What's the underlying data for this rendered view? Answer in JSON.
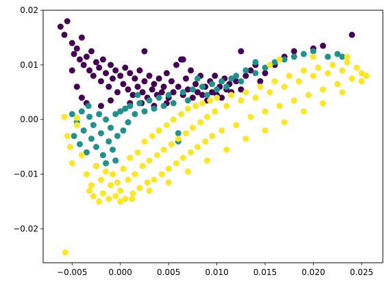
{
  "chart_data": {
    "type": "scatter",
    "title": "",
    "xlabel": "",
    "ylabel": "",
    "xlim": [
      -0.008,
      0.0272
    ],
    "ylim": [
      -0.0262,
      0.02
    ],
    "grid": false,
    "x_ticks": [
      {
        "value": -0.005,
        "label": "−0.005"
      },
      {
        "value": 0.0,
        "label": "0.000"
      },
      {
        "value": 0.005,
        "label": "0.005"
      },
      {
        "value": 0.01,
        "label": "0.010"
      },
      {
        "value": 0.015,
        "label": "0.015"
      },
      {
        "value": 0.02,
        "label": "0.020"
      },
      {
        "value": 0.025,
        "label": "0.025"
      }
    ],
    "y_ticks": [
      {
        "value": -0.02,
        "label": "−0.02"
      },
      {
        "value": -0.01,
        "label": "−0.01"
      },
      {
        "value": 0.0,
        "label": "0.00"
      },
      {
        "value": 0.01,
        "label": "0.01"
      },
      {
        "value": 0.02,
        "label": "0.02"
      }
    ],
    "series": [
      {
        "color": "#440154",
        "points": [
          [
            -0.0062,
            0.017
          ],
          [
            -0.0058,
            0.0155
          ],
          [
            -0.0055,
            0.018
          ],
          [
            -0.005,
            0.014
          ],
          [
            -0.0048,
            0.012
          ],
          [
            -0.0045,
            0.013
          ],
          [
            -0.0042,
            0.011
          ],
          [
            -0.004,
            0.015
          ],
          [
            -0.0038,
            0.01
          ],
          [
            -0.0035,
            0.0115
          ],
          [
            -0.0032,
            0.009
          ],
          [
            -0.003,
            0.0125
          ],
          [
            -0.0028,
            0.008
          ],
          [
            -0.0025,
            0.0105
          ],
          [
            -0.0022,
            0.0095
          ],
          [
            -0.002,
            0.007
          ],
          [
            -0.0018,
            0.011
          ],
          [
            -0.0015,
            0.0085
          ],
          [
            -0.0012,
            0.006
          ],
          [
            -0.001,
            0.01
          ],
          [
            -0.0008,
            0.0075
          ],
          [
            -0.0005,
            0.009
          ],
          [
            -0.0003,
            0.005
          ],
          [
            0.0,
            0.008
          ],
          [
            0.0003,
            0.0065
          ],
          [
            0.0005,
            0.0095
          ],
          [
            0.0008,
            0.0055
          ],
          [
            0.001,
            0.0085
          ],
          [
            0.0013,
            0.0045
          ],
          [
            0.0015,
            0.0075
          ],
          [
            0.0018,
            0.006
          ],
          [
            0.002,
            0.009
          ],
          [
            0.0023,
            0.005
          ],
          [
            0.0025,
            0.007
          ],
          [
            0.0028,
            0.004
          ],
          [
            0.003,
            0.008
          ],
          [
            0.0033,
            0.0055
          ],
          [
            0.0035,
            0.0065
          ],
          [
            0.0038,
            0.0045
          ],
          [
            0.004,
            0.0075
          ],
          [
            0.0043,
            0.005
          ],
          [
            0.0045,
            0.006
          ],
          [
            0.0048,
            0.0085
          ],
          [
            0.005,
            0.004
          ],
          [
            0.0053,
            0.007
          ],
          [
            0.0055,
            0.005
          ],
          [
            0.0058,
            0.01
          ],
          [
            0.006,
            0.006
          ],
          [
            0.0063,
            0.011
          ],
          [
            0.0065,
            0.0045
          ],
          [
            0.0068,
            0.0075
          ],
          [
            0.007,
            0.0055
          ],
          [
            0.0073,
            0.009
          ],
          [
            0.0075,
            0.004
          ],
          [
            0.0078,
            0.0065
          ],
          [
            0.008,
            0.005
          ],
          [
            0.0083,
            0.008
          ],
          [
            0.0085,
            0.0045
          ],
          [
            0.0088,
            0.006
          ],
          [
            0.009,
            0.0035
          ],
          [
            0.0093,
            0.007
          ],
          [
            0.0095,
            0.005
          ],
          [
            0.0098,
            0.008
          ],
          [
            0.01,
            0.0045
          ],
          [
            0.0103,
            0.006
          ],
          [
            0.0105,
            0.004
          ],
          [
            0.0108,
            0.0075
          ],
          [
            0.011,
            0.0055
          ],
          [
            0.0113,
            0.0065
          ],
          [
            0.0115,
            0.005
          ],
          [
            0.012,
            0.007
          ],
          [
            0.0125,
            0.0055
          ],
          [
            0.013,
            0.008
          ],
          [
            0.0135,
            0.009
          ],
          [
            0.014,
            0.01
          ],
          [
            0.0145,
            0.007
          ],
          [
            0.015,
            0.0085
          ],
          [
            0.016,
            0.01
          ],
          [
            0.017,
            0.0115
          ],
          [
            0.018,
            0.0125
          ],
          [
            0.02,
            0.013
          ],
          [
            0.021,
            0.0135
          ],
          [
            0.024,
            0.0155
          ],
          [
            0.0025,
            0.0125
          ],
          [
            0.0125,
            0.0125
          ],
          [
            0.0065,
            0.011
          ],
          [
            -0.0035,
            0.003
          ],
          [
            -0.002,
            0.0025
          ],
          [
            -0.001,
            0.0035
          ],
          [
            0.001,
            0.003
          ],
          [
            -0.0045,
            0.006
          ],
          [
            -0.005,
            0.009
          ],
          [
            -0.004,
            0.004
          ],
          [
            0.0022,
            0.003
          ],
          [
            0.0035,
            0.0025
          ],
          [
            0.0048,
            0.003
          ]
        ]
      },
      {
        "color": "#21918c",
        "points": [
          [
            -0.005,
            0.001
          ],
          [
            -0.0048,
            -0.003
          ],
          [
            -0.0045,
            -0.0005
          ],
          [
            -0.0042,
            -0.0045
          ],
          [
            -0.004,
            0.0015
          ],
          [
            -0.0038,
            -0.002
          ],
          [
            -0.0035,
            -0.006
          ],
          [
            -0.0032,
            0.0005
          ],
          [
            -0.003,
            -0.0035
          ],
          [
            -0.0028,
            -0.001
          ],
          [
            -0.0025,
            -0.005
          ],
          [
            -0.0022,
            0.001
          ],
          [
            -0.002,
            -0.0025
          ],
          [
            -0.0018,
            -0.0065
          ],
          [
            -0.0015,
            0.0
          ],
          [
            -0.0012,
            -0.004
          ],
          [
            -0.001,
            -0.0015
          ],
          [
            -0.0008,
            -0.0055
          ],
          [
            -0.0005,
            0.001
          ],
          [
            -0.0003,
            -0.003
          ],
          [
            0.0,
            0.0015
          ],
          [
            0.0003,
            -0.002
          ],
          [
            0.0005,
            0.002
          ],
          [
            0.0008,
            -0.0005
          ],
          [
            0.001,
            0.0025
          ],
          [
            0.0015,
            0.001
          ],
          [
            0.002,
            0.003
          ],
          [
            0.0025,
            0.0015
          ],
          [
            0.003,
            0.0035
          ],
          [
            0.0035,
            0.002
          ],
          [
            0.004,
            0.004
          ],
          [
            0.0045,
            0.0025
          ],
          [
            0.005,
            0.0045
          ],
          [
            0.0055,
            0.003
          ],
          [
            0.006,
            -0.0025
          ],
          [
            0.006,
            -0.004
          ],
          [
            0.0065,
            0.005
          ],
          [
            0.007,
            0.0035
          ],
          [
            0.0075,
            0.0055
          ],
          [
            0.008,
            0.0075
          ],
          [
            0.0085,
            0.006
          ],
          [
            0.009,
            0.0045
          ],
          [
            0.0095,
            0.0065
          ],
          [
            0.01,
            0.0055
          ],
          [
            0.0105,
            0.007
          ],
          [
            0.011,
            0.006
          ],
          [
            0.0115,
            0.0075
          ],
          [
            0.012,
            0.008
          ],
          [
            0.0125,
            0.007
          ],
          [
            0.013,
            0.009
          ],
          [
            0.014,
            0.0085
          ],
          [
            0.015,
            0.0095
          ],
          [
            0.016,
            0.0105
          ],
          [
            0.017,
            0.011
          ],
          [
            0.018,
            0.0115
          ],
          [
            0.019,
            0.012
          ],
          [
            0.02,
            0.0125
          ],
          [
            0.0215,
            0.0115
          ],
          [
            0.0225,
            0.012
          ],
          [
            0.023,
            0.0115
          ],
          [
            0.014,
            0.0105
          ],
          [
            -0.0025,
            -0.0085
          ],
          [
            -0.0015,
            -0.008
          ],
          [
            -0.0005,
            -0.0075
          ],
          [
            -0.0033,
            0.0025
          ],
          [
            0.0018,
            0.0045
          ]
        ]
      },
      {
        "color": "#fde725",
        "points": [
          [
            -0.0058,
            0.0005
          ],
          [
            -0.0055,
            -0.003
          ],
          [
            -0.0052,
            -0.005
          ],
          [
            -0.005,
            -0.008
          ],
          [
            -0.0045,
            -0.001
          ],
          [
            -0.004,
            -0.0065
          ],
          [
            -0.0035,
            -0.01
          ],
          [
            -0.0032,
            -0.013
          ],
          [
            -0.003,
            -0.012
          ],
          [
            -0.0028,
            -0.014
          ],
          [
            -0.0025,
            -0.0085
          ],
          [
            -0.0022,
            -0.015
          ],
          [
            -0.002,
            -0.011
          ],
          [
            -0.0018,
            -0.0135
          ],
          [
            -0.0015,
            -0.0095
          ],
          [
            -0.0012,
            -0.0145
          ],
          [
            -0.001,
            -0.012
          ],
          [
            -0.0008,
            -0.01
          ],
          [
            -0.0005,
            -0.014
          ],
          [
            -0.0003,
            -0.0115
          ],
          [
            0.0,
            -0.013
          ],
          [
            0.0003,
            -0.009
          ],
          [
            0.0005,
            -0.0145
          ],
          [
            0.0008,
            -0.011
          ],
          [
            0.001,
            -0.007
          ],
          [
            0.0013,
            -0.0135
          ],
          [
            0.0015,
            -0.01
          ],
          [
            0.0018,
            -0.006
          ],
          [
            0.002,
            -0.0125
          ],
          [
            0.0023,
            -0.0085
          ],
          [
            0.0025,
            -0.004
          ],
          [
            0.0028,
            -0.0115
          ],
          [
            0.003,
            -0.0075
          ],
          [
            0.0033,
            -0.003
          ],
          [
            0.0035,
            -0.011
          ],
          [
            0.0038,
            -0.0065
          ],
          [
            0.004,
            -0.002
          ],
          [
            0.0043,
            -0.01
          ],
          [
            0.0045,
            -0.0055
          ],
          [
            0.0048,
            -0.001
          ],
          [
            0.005,
            -0.009
          ],
          [
            0.0053,
            -0.0045
          ],
          [
            0.0055,
            0.0
          ],
          [
            0.0058,
            -0.008
          ],
          [
            0.006,
            -0.0035
          ],
          [
            0.0063,
            0.001
          ],
          [
            0.0065,
            -0.007
          ],
          [
            0.0068,
            -0.0025
          ],
          [
            0.007,
            0.002
          ],
          [
            0.0073,
            -0.006
          ],
          [
            0.0075,
            -0.0015
          ],
          [
            0.0078,
            0.0025
          ],
          [
            0.008,
            -0.005
          ],
          [
            0.0083,
            -0.0005
          ],
          [
            0.0085,
            0.003
          ],
          [
            0.0088,
            -0.004
          ],
          [
            0.009,
            0.0005
          ],
          [
            0.0093,
            0.0035
          ],
          [
            0.0095,
            -0.003
          ],
          [
            0.0098,
            0.0015
          ],
          [
            0.01,
            0.004
          ],
          [
            0.0105,
            -0.002
          ],
          [
            0.011,
            0.0025
          ],
          [
            0.0115,
            0.0045
          ],
          [
            0.012,
            -0.001
          ],
          [
            0.0125,
            0.0035
          ],
          [
            0.013,
            0.005
          ],
          [
            0.0135,
            0.0005
          ],
          [
            0.014,
            0.004
          ],
          [
            0.0145,
            0.006
          ],
          [
            0.015,
            0.0015
          ],
          [
            0.0155,
            0.005
          ],
          [
            0.016,
            0.007
          ],
          [
            0.0165,
            0.0025
          ],
          [
            0.017,
            0.006
          ],
          [
            0.0175,
            0.008
          ],
          [
            0.018,
            0.0035
          ],
          [
            0.0185,
            0.007
          ],
          [
            0.019,
            0.009
          ],
          [
            0.0195,
            0.0045
          ],
          [
            0.02,
            0.008
          ],
          [
            0.0205,
            0.0095
          ],
          [
            0.021,
            0.0055
          ],
          [
            0.0215,
            0.0085
          ],
          [
            0.022,
            0.01
          ],
          [
            0.0225,
            0.0065
          ],
          [
            0.023,
            0.009
          ],
          [
            0.0235,
            0.0105
          ],
          [
            0.024,
            0.0075
          ],
          [
            0.0245,
            0.0095
          ],
          [
            0.025,
            0.0085
          ],
          [
            0.0255,
            0.008
          ],
          [
            0.0155,
            0.01
          ],
          [
            0.0165,
            0.011
          ],
          [
            0.02,
            0.0115
          ],
          [
            0.0235,
            0.0115
          ],
          [
            -0.0057,
            -0.0243
          ],
          [
            -0.0045,
            0.0003
          ],
          [
            0.0,
            -0.015
          ],
          [
            0.0012,
            -0.0145
          ],
          [
            0.003,
            -0.013
          ],
          [
            0.005,
            -0.0115
          ],
          [
            0.007,
            -0.0095
          ],
          [
            0.009,
            -0.0075
          ],
          [
            0.011,
            -0.0055
          ],
          [
            0.013,
            -0.0035
          ],
          [
            0.015,
            -0.002
          ],
          [
            0.017,
            -0.0005
          ],
          [
            0.019,
            0.0015
          ],
          [
            0.021,
            0.003
          ],
          [
            0.023,
            0.005
          ],
          [
            0.025,
            0.007
          ]
        ]
      }
    ]
  }
}
